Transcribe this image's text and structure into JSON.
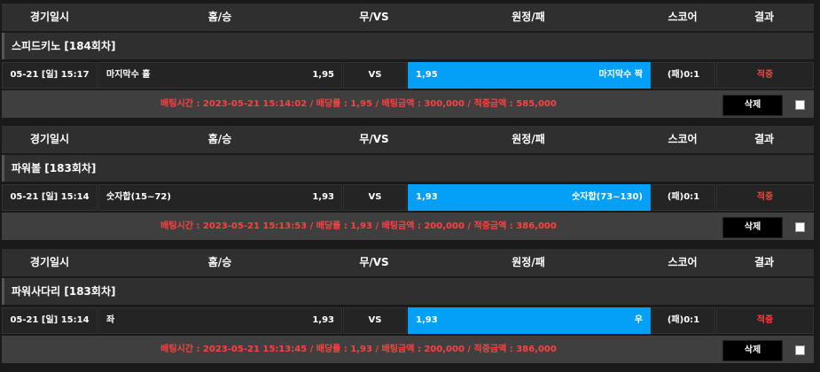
{
  "columns": {
    "date": "경기일시",
    "home": "홈/승",
    "draw": "무/VS",
    "away": "원정/패",
    "score": "스코어",
    "result": "결과"
  },
  "delete_label": "삭제",
  "colors": {
    "away_highlight": "#04a0f8",
    "result": "#ff4040",
    "bet_info": "#ff4040"
  },
  "bets": [
    {
      "title": "스피드키노 [184회차]",
      "date": "05-21 [일] 15:17",
      "home_name": "마지막수 홀",
      "home_odds": "1,95",
      "vs": "VS",
      "away_odds": "1,95",
      "away_name": "마지막수 짝",
      "score": "(패)0:1",
      "result": "적중",
      "info": "배팅시간 : 2023-05-21 15:14:02  /  배당률 : 1,95  /  배팅금액 : 300,000  /  적중금액 : 585,000"
    },
    {
      "title": "파워볼 [183회차]",
      "date": "05-21 [일] 15:14",
      "home_name": "숫자합(15~72)",
      "home_odds": "1,93",
      "vs": "VS",
      "away_odds": "1,93",
      "away_name": "숫자합(73~130)",
      "score": "(패)0:1",
      "result": "적중",
      "info": "배팅시간 : 2023-05-21 15:13:53  /  배당률 : 1,93  /  배팅금액 : 200,000  /  적중금액 : 386,000"
    },
    {
      "title": "파워사다리 [183회차]",
      "date": "05-21 [일] 15:14",
      "home_name": "좌",
      "home_odds": "1,93",
      "vs": "VS",
      "away_odds": "1,93",
      "away_name": "우",
      "score": "(패)0:1",
      "result": "적중",
      "info": "배팅시간 : 2023-05-21 15:13:45  /  배당률 : 1,93  /  배팅금액 : 200,000  /  적중금액 : 386,000"
    }
  ]
}
